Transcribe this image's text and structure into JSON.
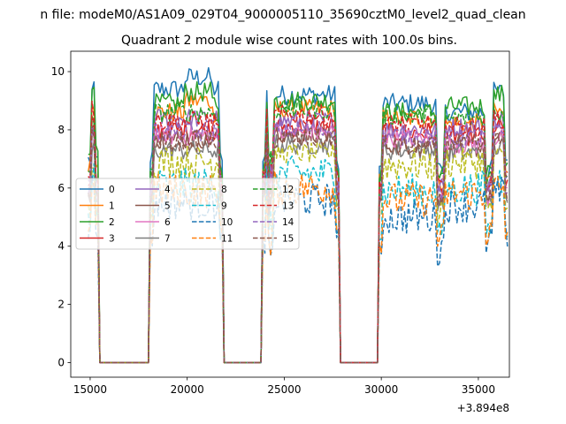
{
  "chart_data": {
    "type": "line",
    "suptitle": "n file: modeM0/AS1A09_029T04_9000005110_35690cztM0_level2_quad_clean",
    "title": "Quadrant 2 module wise count rates with 100.0s bins.",
    "xlabel": "",
    "ylabel": "",
    "x_offset_label": "+3.894e8",
    "xlim": [
      14000,
      36600
    ],
    "ylim": [
      -0.5,
      10.7
    ],
    "xticks": [
      15000,
      20000,
      25000,
      30000,
      35000
    ],
    "xtick_labels": [
      "15000",
      "20000",
      "25000",
      "30000",
      "35000"
    ],
    "yticks": [
      0,
      2,
      4,
      6,
      8,
      10
    ],
    "ytick_labels": [
      "0",
      "2",
      "4",
      "6",
      "8",
      "10"
    ],
    "segments": [
      [
        14900,
        15400
      ],
      [
        18100,
        21800
      ],
      [
        23900,
        27800
      ],
      [
        29900,
        33000
      ],
      [
        33100,
        35500
      ],
      [
        35600,
        36500
      ]
    ],
    "legend": {
      "location": "center-left",
      "columns": 4
    },
    "series": [
      {
        "name": "0",
        "color": "#1f77b4",
        "dash": "solid",
        "levels": [
          9.3,
          9.4,
          9.2,
          8.9,
          8.6,
          9.3
        ]
      },
      {
        "name": "1",
        "color": "#ff7f0e",
        "dash": "solid",
        "levels": [
          9.0,
          8.6,
          8.7,
          8.4,
          8.2,
          8.6
        ]
      },
      {
        "name": "2",
        "color": "#2ca02c",
        "dash": "solid",
        "levels": [
          9.7,
          8.9,
          9.0,
          8.6,
          8.8,
          9.2
        ]
      },
      {
        "name": "3",
        "color": "#d62728",
        "dash": "solid",
        "levels": [
          8.3,
          8.0,
          8.1,
          7.9,
          7.8,
          8.1
        ]
      },
      {
        "name": "4",
        "color": "#9467bd",
        "dash": "solid",
        "levels": [
          8.1,
          8.4,
          8.3,
          8.0,
          8.1,
          8.4
        ]
      },
      {
        "name": "5",
        "color": "#8c564b",
        "dash": "solid",
        "levels": [
          7.9,
          7.7,
          7.8,
          7.5,
          7.4,
          7.6
        ]
      },
      {
        "name": "6",
        "color": "#e377c2",
        "dash": "solid",
        "levels": [
          7.6,
          7.8,
          7.9,
          7.7,
          7.5,
          7.7
        ]
      },
      {
        "name": "7",
        "color": "#7f7f7f",
        "dash": "solid",
        "levels": [
          7.4,
          7.3,
          7.5,
          7.3,
          7.2,
          7.4
        ]
      },
      {
        "name": "8",
        "color": "#bcbd22",
        "dash": "dashed",
        "levels": [
          7.0,
          6.9,
          7.2,
          6.8,
          6.9,
          7.1
        ]
      },
      {
        "name": "9",
        "color": "#17becf",
        "dash": "dashed",
        "levels": [
          6.6,
          6.1,
          6.5,
          5.9,
          6.0,
          6.3
        ]
      },
      {
        "name": "10",
        "color": "#1f77b4",
        "dash": "dashed",
        "levels": [
          6.1,
          5.5,
          5.6,
          5.0,
          5.4,
          5.8
        ]
      },
      {
        "name": "11",
        "color": "#ff7f0e",
        "dash": "dashed",
        "levels": [
          6.3,
          5.9,
          6.0,
          5.6,
          5.8,
          6.0
        ]
      },
      {
        "name": "12",
        "color": "#2ca02c",
        "dash": "dashed",
        "levels": [
          8.5,
          8.6,
          8.7,
          8.5,
          8.4,
          8.6
        ]
      },
      {
        "name": "13",
        "color": "#d62728",
        "dash": "dashed",
        "levels": [
          8.7,
          8.3,
          8.5,
          8.2,
          8.1,
          8.4
        ]
      },
      {
        "name": "14",
        "color": "#9467bd",
        "dash": "dashed",
        "levels": [
          8.0,
          7.9,
          8.0,
          7.8,
          7.7,
          7.9
        ]
      },
      {
        "name": "15",
        "color": "#8c564b",
        "dash": "dashed",
        "levels": [
          7.7,
          7.6,
          7.7,
          7.4,
          7.5,
          7.6
        ]
      }
    ]
  }
}
